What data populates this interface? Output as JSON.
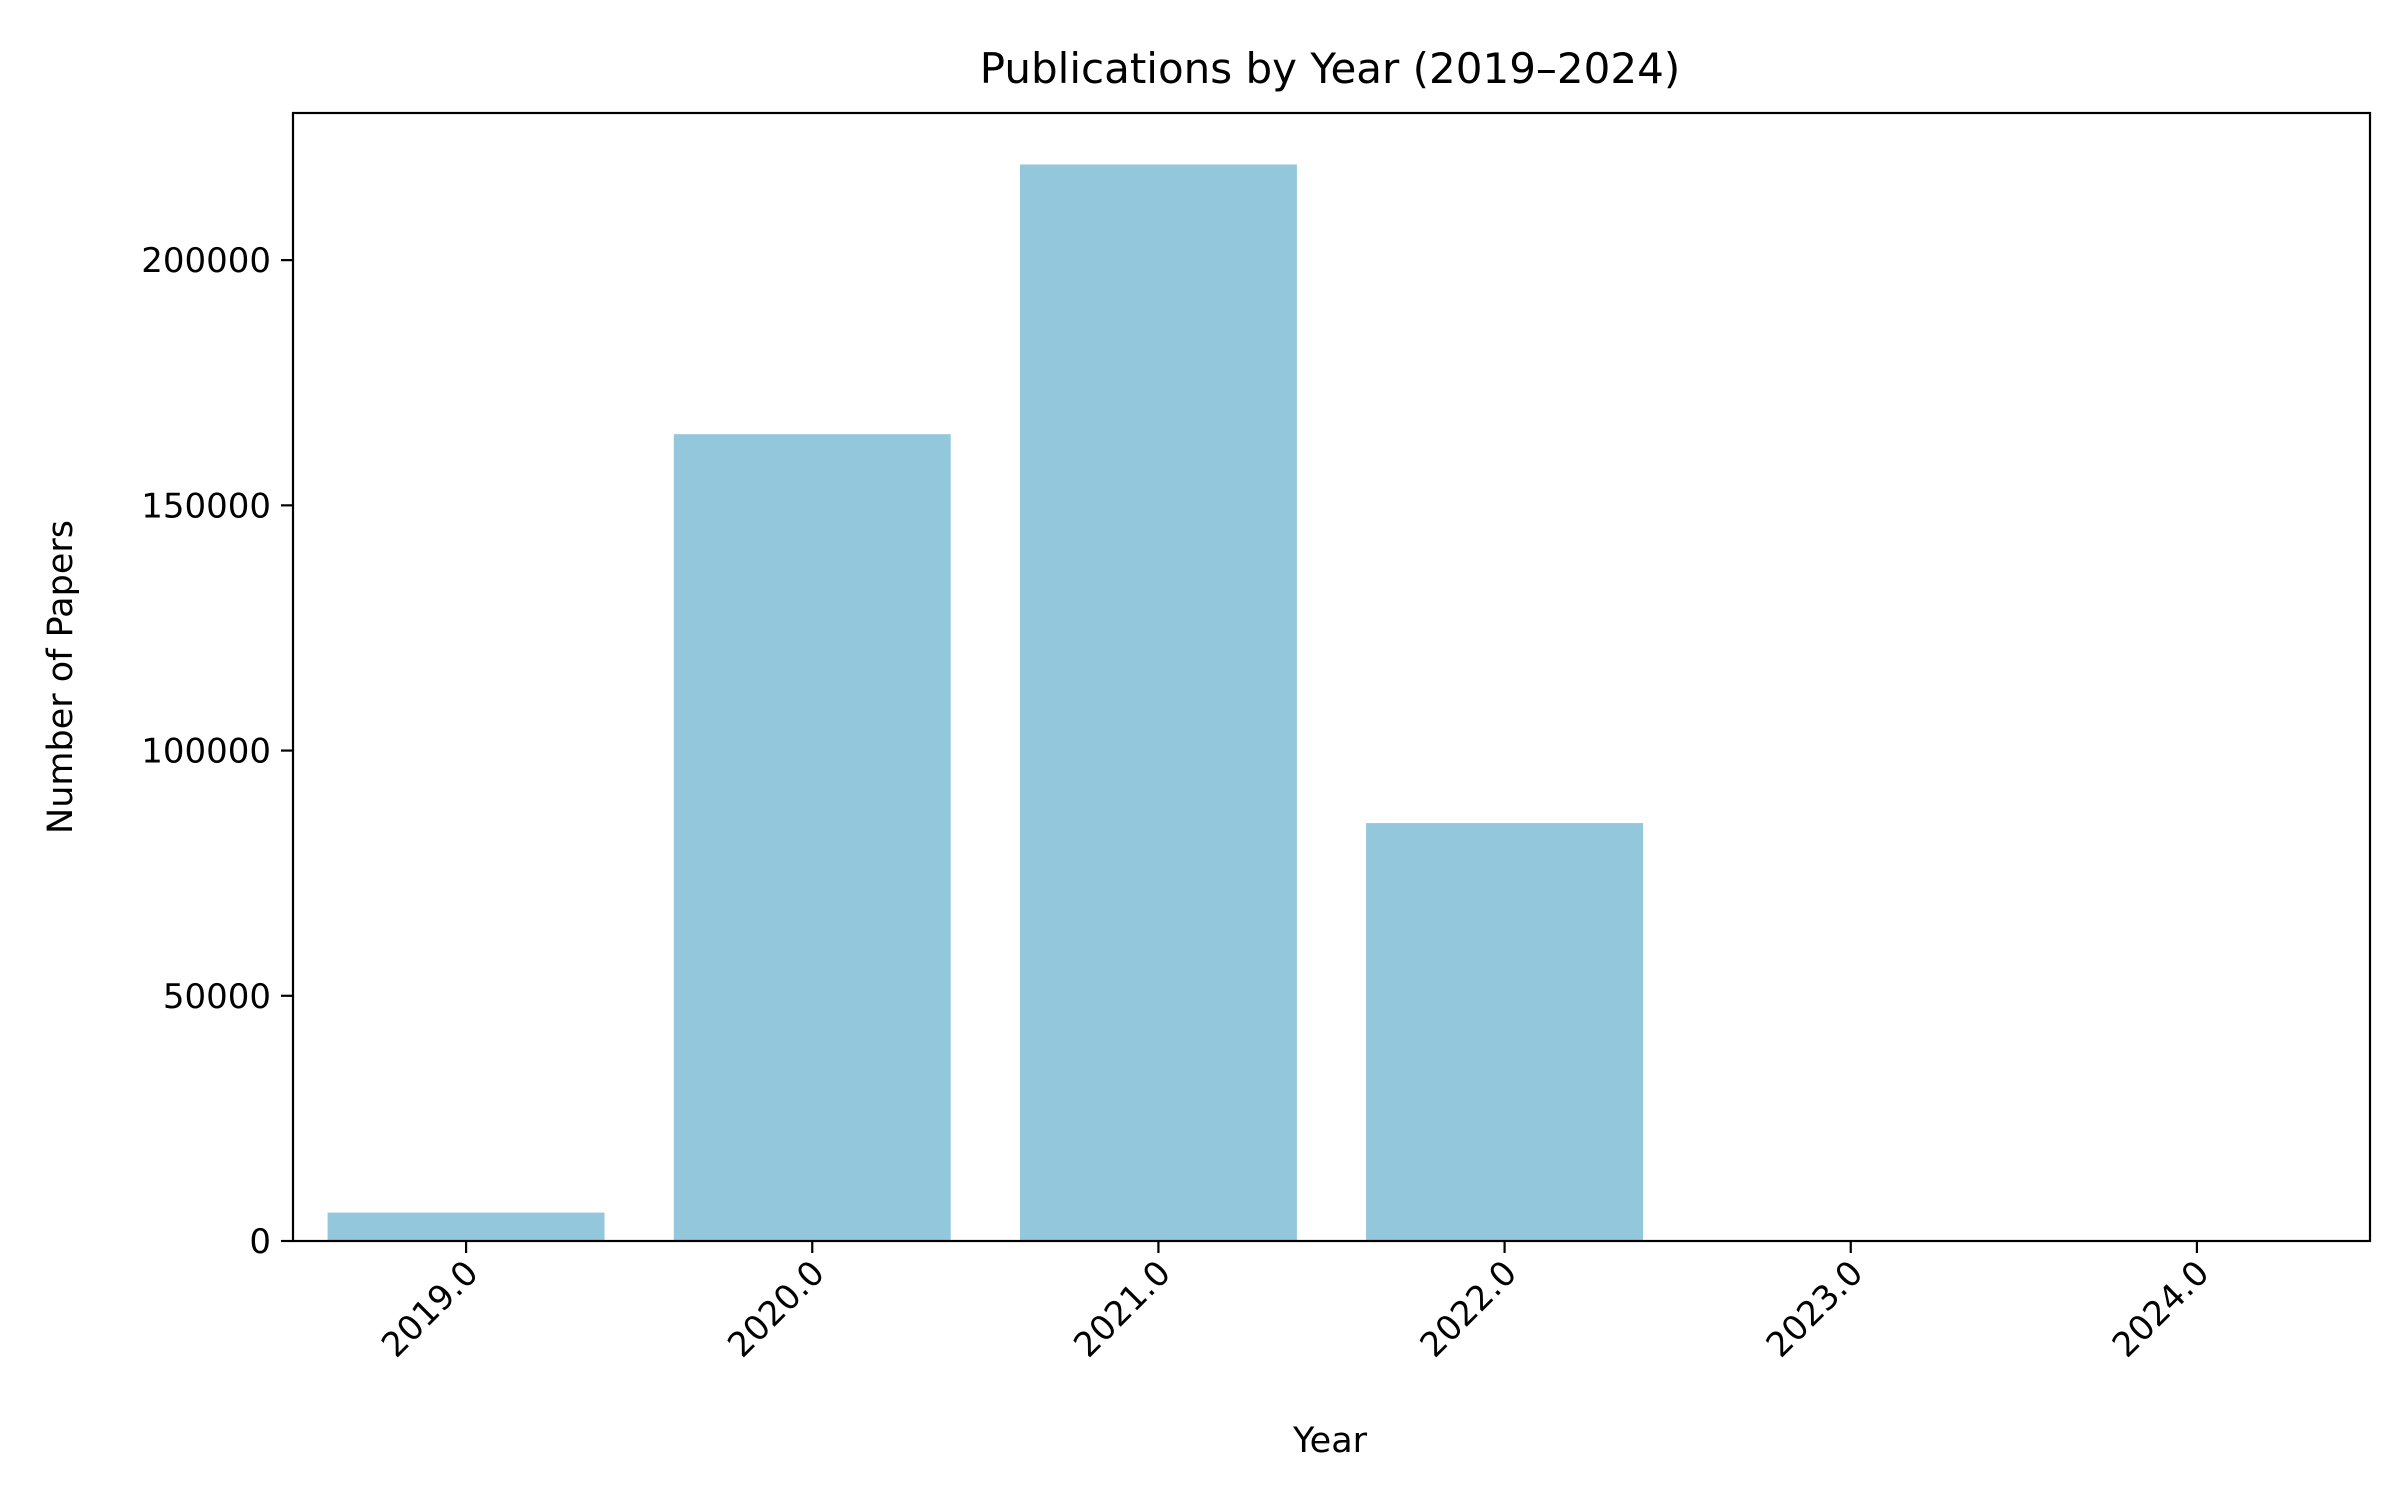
{
  "chart_data": {
    "type": "bar",
    "title": "Publications by Year (2019–2024)",
    "xlabel": "Year",
    "ylabel": "Number of Papers",
    "categories": [
      "2019.0",
      "2020.0",
      "2021.0",
      "2022.0",
      "2023.0",
      "2024.0"
    ],
    "values": [
      5800,
      164500,
      219500,
      85200,
      0,
      0
    ],
    "ylim": [
      0,
      230000
    ],
    "yticks": [
      0,
      50000,
      100000,
      150000,
      200000
    ],
    "ytick_labels": [
      "0",
      "50000",
      "100000",
      "150000",
      "200000"
    ],
    "bar_color": "#92c7dc",
    "grid": false,
    "legend": "none"
  }
}
